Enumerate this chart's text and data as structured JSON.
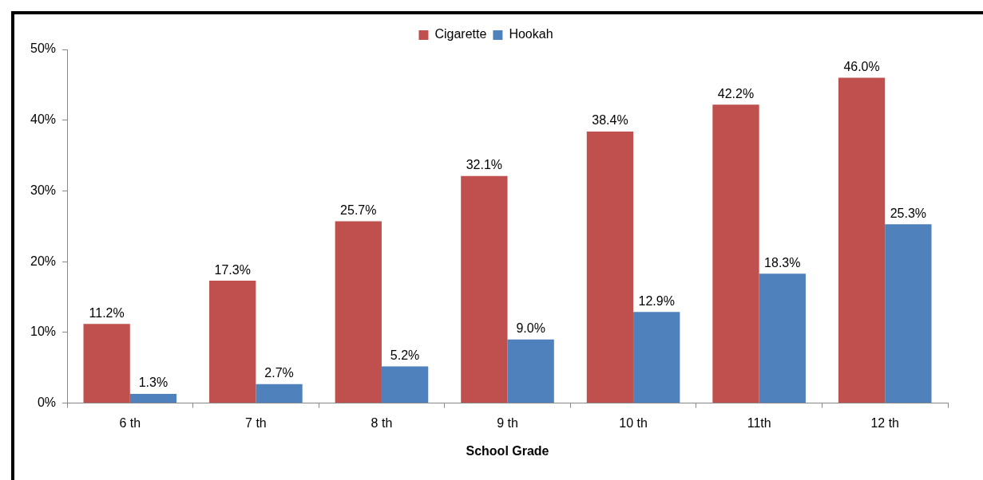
{
  "chart_data": {
    "type": "bar",
    "xlabel": "School Grade",
    "categories": [
      "6 th",
      "7 th",
      "8 th",
      "9 th",
      "10 th",
      "11th",
      "12 th"
    ],
    "series": [
      {
        "name": "Cigarette",
        "color": "#c0504d",
        "values": [
          11.2,
          17.3,
          25.7,
          32.1,
          38.4,
          42.2,
          46.0
        ],
        "value_labels": [
          "11.2%",
          "17.3%",
          "25.7%",
          "32.1%",
          "38.4%",
          "42.2%",
          "46.0%"
        ]
      },
      {
        "name": "Hookah",
        "color": "#4f81bd",
        "values": [
          1.3,
          2.7,
          5.2,
          9.0,
          12.9,
          18.3,
          25.3
        ],
        "value_labels": [
          "1.3%",
          "2.7%",
          "5.2%",
          "9.0%",
          "12.9%",
          "18.3%",
          "25.3%"
        ]
      }
    ],
    "ylim": [
      0,
      50
    ],
    "yticks": [
      {
        "value": 0,
        "label": "0%"
      },
      {
        "value": 10,
        "label": "10%"
      },
      {
        "value": 20,
        "label": "20%"
      },
      {
        "value": 30,
        "label": "30%"
      },
      {
        "value": 40,
        "label": "40%"
      },
      {
        "value": 50,
        "label": "50%"
      }
    ],
    "grid": false,
    "legend": "top"
  }
}
